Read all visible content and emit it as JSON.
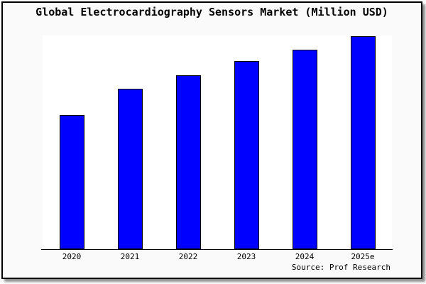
{
  "window": {
    "background_color": "#fafafa",
    "border_color": "#000000",
    "shadow_color": "#909090",
    "plot_background_color": "#ffffff"
  },
  "chart_data": {
    "type": "bar",
    "title": "Global Electrocardiography Sensors Market (Million USD)",
    "categories": [
      "2020",
      "2021",
      "2022",
      "2023",
      "2024",
      "2025e"
    ],
    "values": [
      62.7,
      75.1,
      81.5,
      87.9,
      93.5,
      99.7
    ],
    "values_note": "y-axis has no tick labels or gridlines; values are estimated relative bar heights as percent of plot height",
    "xlabel": "",
    "ylabel": "",
    "ylim": [
      0,
      100
    ],
    "grid": false,
    "legend": "none",
    "bar_color": "#0000ff",
    "bar_border_color": "#000000"
  },
  "footer": {
    "source": "Source: Prof Research"
  }
}
